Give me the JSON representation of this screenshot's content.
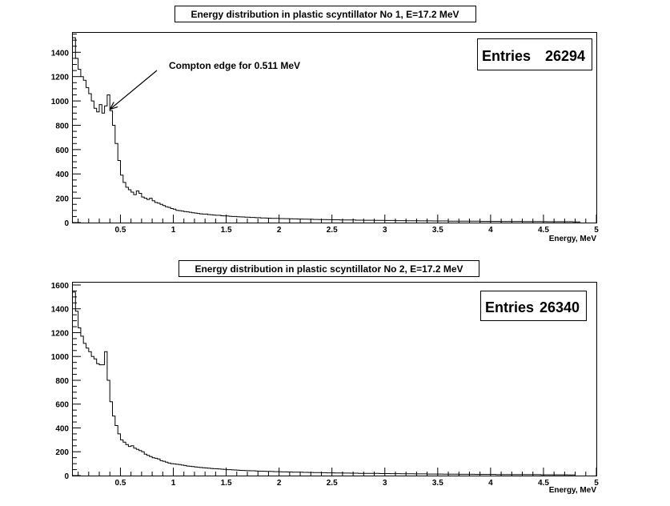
{
  "chart_data": [
    {
      "type": "histogram",
      "title": "Energy distribution in plastic scyntillator No 1, E=17.2 MeV",
      "xlabel": "Energy, MeV",
      "ylabel": "",
      "xlim": [
        0.05,
        5
      ],
      "ylim": [
        0,
        1560
      ],
      "x_ticks": [
        0.5,
        1,
        1.5,
        2,
        2.5,
        3,
        3.5,
        4,
        4.5,
        5
      ],
      "x_tick_labels": [
        "0.5",
        "1",
        "1.5",
        "2",
        "2.5",
        "3",
        "3.5",
        "4",
        "4.5",
        "5"
      ],
      "y_ticks": [
        0,
        200,
        400,
        600,
        800,
        1000,
        1200,
        1400
      ],
      "y_tick_labels": [
        "0",
        "200",
        "400",
        "600",
        "800",
        "1000",
        "1200",
        "1400"
      ],
      "stats": {
        "label": "Entries",
        "value": "26294"
      },
      "annotation": {
        "text": "Compton edge for 0.511 MeV",
        "arrow_to": [
          0.36,
          920
        ]
      },
      "bin_width": 0.025,
      "x_start": 0.05,
      "values": [
        1520,
        1350,
        1260,
        1200,
        1170,
        1110,
        1060,
        1000,
        940,
        910,
        970,
        900,
        960,
        1050,
        920,
        800,
        650,
        510,
        390,
        330,
        290,
        270,
        250,
        230,
        260,
        240,
        210,
        200,
        190,
        200,
        180,
        165,
        160,
        150,
        140,
        130,
        125,
        115,
        110,
        100,
        98,
        95,
        90,
        88,
        85,
        80,
        78,
        75,
        72,
        70,
        70,
        66,
        64,
        62,
        60,
        60,
        56,
        55,
        54,
        52,
        50,
        50,
        48,
        47,
        46,
        45,
        44,
        42,
        42,
        40,
        40,
        38,
        38,
        37,
        36,
        35,
        35,
        34,
        33,
        33,
        32,
        32,
        31,
        30,
        30,
        29,
        29,
        28,
        28,
        27,
        27,
        26,
        26,
        25,
        25,
        25,
        24,
        24,
        23,
        23,
        23,
        22,
        22,
        22,
        21,
        21,
        21,
        20,
        20,
        20,
        19,
        19,
        19,
        19,
        18,
        18,
        18,
        18,
        17,
        17,
        17,
        17,
        16,
        16,
        16,
        16,
        15,
        15,
        15,
        15,
        15,
        14,
        14,
        14,
        14,
        14,
        13,
        13,
        13,
        13,
        13,
        13,
        12,
        12,
        12,
        12,
        12,
        12,
        11,
        11,
        11,
        11,
        11,
        11,
        10,
        10,
        10,
        10,
        10,
        10,
        10,
        10,
        9,
        9,
        9,
        9,
        9,
        9,
        9,
        9,
        8,
        8,
        8,
        8,
        8,
        8,
        8,
        8,
        8,
        7,
        7,
        7,
        7,
        7,
        7,
        7,
        7,
        7,
        7,
        6,
        6,
        6
      ]
    },
    {
      "type": "histogram",
      "title": "Energy distribution in plastic scyntillator No 2, E=17.2 MeV",
      "xlabel": "Energy, MeV",
      "ylabel": "",
      "xlim": [
        0.05,
        5
      ],
      "ylim": [
        0,
        1620
      ],
      "x_ticks": [
        0.5,
        1,
        1.5,
        2,
        2.5,
        3,
        3.5,
        4,
        4.5,
        5
      ],
      "x_tick_labels": [
        "0.5",
        "1",
        "1.5",
        "2",
        "2.5",
        "3",
        "3.5",
        "4",
        "4.5",
        "5"
      ],
      "y_ticks": [
        0,
        200,
        400,
        600,
        800,
        1000,
        1200,
        1400,
        1600
      ],
      "y_tick_labels": [
        "0",
        "200",
        "400",
        "600",
        "800",
        "1000",
        "1200",
        "1400",
        "1600"
      ],
      "stats": {
        "label": "Entries",
        "value": "26340"
      },
      "bin_width": 0.025,
      "x_start": 0.05,
      "values": [
        1540,
        1380,
        1240,
        1170,
        1110,
        1070,
        1040,
        1000,
        980,
        940,
        930,
        930,
        1040,
        800,
        620,
        500,
        420,
        350,
        300,
        280,
        260,
        245,
        250,
        230,
        220,
        210,
        200,
        180,
        170,
        160,
        150,
        145,
        140,
        125,
        120,
        112,
        105,
        100,
        98,
        95,
        92,
        88,
        85,
        80,
        78,
        75,
        72,
        70,
        68,
        66,
        64,
        62,
        60,
        58,
        57,
        55,
        54,
        52,
        50,
        50,
        48,
        47,
        46,
        44,
        43,
        42,
        41,
        40,
        40,
        38,
        37,
        37,
        36,
        35,
        35,
        34,
        33,
        33,
        32,
        31,
        31,
        30,
        30,
        29,
        29,
        28,
        28,
        27,
        27,
        26,
        26,
        25,
        25,
        25,
        24,
        24,
        23,
        23,
        23,
        22,
        22,
        22,
        21,
        21,
        21,
        20,
        20,
        20,
        19,
        19,
        19,
        19,
        18,
        18,
        18,
        18,
        17,
        17,
        17,
        17,
        16,
        16,
        16,
        16,
        15,
        15,
        15,
        15,
        15,
        14,
        14,
        14,
        14,
        14,
        13,
        13,
        13,
        13,
        13,
        13,
        12,
        12,
        12,
        12,
        12,
        12,
        11,
        11,
        11,
        11,
        11,
        11,
        10,
        10,
        10,
        10,
        10,
        10,
        10,
        10,
        9,
        9,
        9,
        9,
        9,
        9,
        9,
        9,
        8,
        8,
        8,
        8,
        8,
        8,
        8,
        8,
        8,
        7,
        7,
        7,
        7,
        7,
        7,
        7,
        7,
        7,
        7,
        6,
        6,
        6
      ]
    }
  ]
}
